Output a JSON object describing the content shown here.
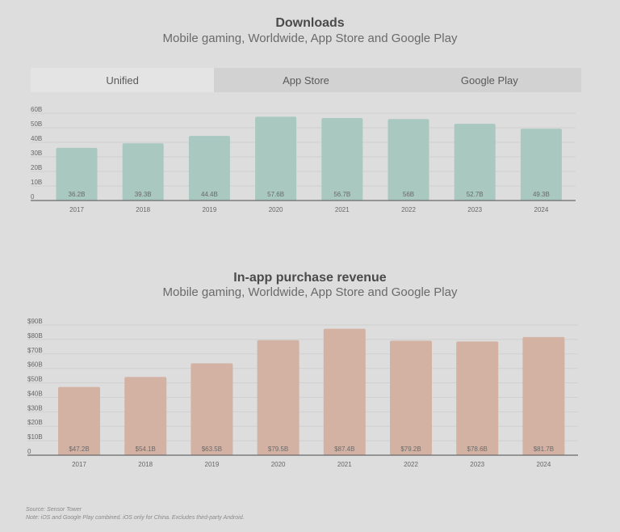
{
  "downloads": {
    "title": "Downloads",
    "subtitle": "Mobile gaming, Worldwide, App Store and Google Play",
    "tabs": [
      {
        "label": "Unified",
        "active": true
      },
      {
        "label": "App Store",
        "active": false
      },
      {
        "label": "Google Play",
        "active": false
      }
    ]
  },
  "revenue": {
    "title": "In-app purchase revenue",
    "subtitle": "Mobile gaming, Worldwide, App Store and Google Play"
  },
  "footer": {
    "source": "Source: Sensor Tower",
    "note": "Note: iOS and Google Play combined. iOS only for China. Excludes third-party Android."
  },
  "chart_data": [
    {
      "type": "bar",
      "title": "Downloads",
      "subtitle": "Mobile gaming, Worldwide, App Store and Google Play",
      "categories": [
        "2017",
        "2018",
        "2019",
        "2020",
        "2021",
        "2022",
        "2023",
        "2024"
      ],
      "values": [
        36.2,
        39.3,
        44.4,
        57.6,
        56.7,
        56,
        52.7,
        49.3
      ],
      "data_labels": [
        "36.2B",
        "39.3B",
        "44.4B",
        "57.6B",
        "56.7B",
        "56B",
        "52.7B",
        "49.3B"
      ],
      "yticks": [
        "0",
        "10B",
        "20B",
        "30B",
        "40B",
        "50B",
        "60B"
      ],
      "ylim": [
        0,
        60
      ],
      "color": "#a8c8c0",
      "grid": true
    },
    {
      "type": "bar",
      "title": "In-app purchase revenue",
      "subtitle": "Mobile gaming, Worldwide, App Store and Google Play",
      "categories": [
        "2017",
        "2018",
        "2019",
        "2020",
        "2021",
        "2022",
        "2023",
        "2024"
      ],
      "values": [
        47.2,
        54.1,
        63.5,
        79.5,
        87.4,
        79.2,
        78.6,
        81.7
      ],
      "data_labels": [
        "$47.2B",
        "$54.1B",
        "$63.5B",
        "$79.5B",
        "$87.4B",
        "$79.2B",
        "$78.6B",
        "$81.7B"
      ],
      "yticks": [
        "0",
        "$10B",
        "$20B",
        "$30B",
        "$40B",
        "$50B",
        "$60B",
        "$70B",
        "$80B",
        "$90B"
      ],
      "ylim": [
        0,
        90
      ],
      "color": "#d3b2a4",
      "grid": true
    }
  ]
}
